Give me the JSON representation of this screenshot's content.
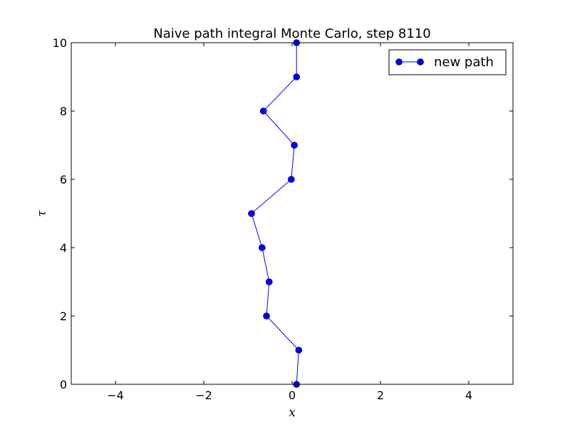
{
  "chart_data": {
    "type": "line",
    "title": "Naive path integral Monte Carlo, step 8110",
    "xlabel": "x",
    "ylabel": "τ",
    "xlim": [
      -5,
      5
    ],
    "ylim": [
      0,
      10
    ],
    "xticks": [
      -4,
      -2,
      0,
      2,
      4
    ],
    "yticks": [
      0,
      2,
      4,
      6,
      8,
      10
    ],
    "xtick_labels": [
      "−4",
      "−2",
      "0",
      "2",
      "4"
    ],
    "ytick_labels": [
      "0",
      "2",
      "4",
      "6",
      "8",
      "10"
    ],
    "grid": false,
    "legend_position": "top-right",
    "series": [
      {
        "name": "new path",
        "color": "#0000ff",
        "marker": "circle",
        "x": [
          0.1,
          0.15,
          -0.58,
          -0.52,
          -0.68,
          -0.92,
          -0.02,
          0.05,
          -0.65,
          0.1,
          0.1
        ],
        "y": [
          0,
          1,
          2,
          3,
          4,
          5,
          6,
          7,
          8,
          9,
          10
        ]
      }
    ]
  }
}
